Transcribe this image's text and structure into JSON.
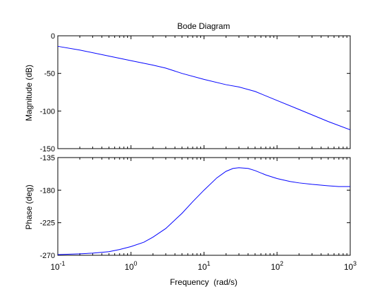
{
  "chart_data": {
    "type": "line",
    "title": "Bode Diagram",
    "xlabel": "Frequency  (rad/s)",
    "x_scale": "log",
    "xlim": [
      0.1,
      1000
    ],
    "x_tick_labels": [
      {
        "base": "10",
        "exp": "-1"
      },
      {
        "base": "10",
        "exp": "0"
      },
      {
        "base": "10",
        "exp": "1"
      },
      {
        "base": "10",
        "exp": "2"
      },
      {
        "base": "10",
        "exp": "3"
      }
    ],
    "line_color": "#0000ff",
    "grid": false,
    "panels": [
      {
        "name": "magnitude",
        "ylabel": "Magnitude (dB)",
        "ylim": [
          -150,
          0
        ],
        "y_ticks": [
          0,
          -50,
          -100,
          -150
        ],
        "y_tick_labels": [
          "0",
          "-50",
          "-100",
          "-150"
        ],
        "series": [
          {
            "x": [
              0.1,
              0.2,
              0.5,
              1,
              2,
              3,
              5,
              10,
              20,
              30,
              50,
              100,
              200,
              500,
              1000
            ],
            "y": [
              -14,
              -19,
              -27,
              -33,
              -39,
              -43,
              -50,
              -58,
              -65,
              -68,
              -74,
              -86,
              -98,
              -114,
              -125
            ]
          }
        ]
      },
      {
        "name": "phase",
        "ylabel": "Phase (deg)",
        "ylim": [
          -270,
          -135
        ],
        "y_ticks": [
          -135,
          -180,
          -225,
          -270
        ],
        "y_tick_labels": [
          "-135",
          "-180",
          "-225",
          "-270"
        ],
        "series": [
          {
            "x": [
              0.1,
              0.2,
              0.3,
              0.5,
              0.7,
              1,
              1.5,
              2,
              3,
              5,
              7,
              10,
              15,
              20,
              25,
              30,
              40,
              50,
              70,
              100,
              150,
              200,
              300,
              500,
              700,
              1000
            ],
            "y": [
              -269,
              -268,
              -267,
              -265,
              -262,
              -258,
              -252,
              -245,
              -233,
              -212,
              -196,
              -180,
              -163,
              -154,
              -150,
              -149,
              -150,
              -153,
              -159,
              -164,
              -168,
              -170,
              -172,
              -174,
              -175,
              -175
            ]
          }
        ]
      }
    ]
  }
}
